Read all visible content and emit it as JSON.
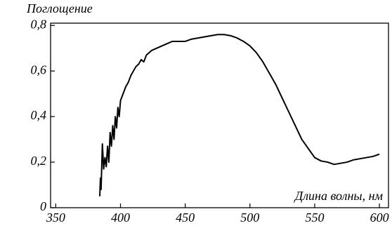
{
  "chart_data": {
    "type": "line",
    "ylabel": "Поглощение",
    "xlabel": "Длина волны, нм",
    "x": [
      384,
      384.5,
      385,
      386,
      387,
      388,
      389,
      390,
      391,
      392,
      393,
      394,
      395,
      396,
      397,
      398,
      399,
      400,
      402,
      404,
      406,
      408,
      410,
      412,
      414,
      416,
      418,
      420,
      424,
      428,
      432,
      436,
      440,
      445,
      450,
      455,
      460,
      465,
      470,
      475,
      480,
      485,
      490,
      495,
      500,
      505,
      510,
      515,
      520,
      525,
      530,
      535,
      540,
      545,
      550,
      555,
      560,
      565,
      570,
      575,
      580,
      585,
      590,
      595,
      600
    ],
    "series": [
      {
        "color": "#000000",
        "values": [
          0.05,
          0.13,
          0.08,
          0.28,
          0.17,
          0.22,
          0.18,
          0.27,
          0.2,
          0.33,
          0.27,
          0.36,
          0.3,
          0.4,
          0.35,
          0.44,
          0.4,
          0.47,
          0.5,
          0.53,
          0.55,
          0.58,
          0.6,
          0.62,
          0.63,
          0.65,
          0.64,
          0.67,
          0.69,
          0.7,
          0.71,
          0.72,
          0.73,
          0.73,
          0.73,
          0.74,
          0.745,
          0.75,
          0.755,
          0.76,
          0.76,
          0.755,
          0.745,
          0.73,
          0.71,
          0.68,
          0.64,
          0.59,
          0.54,
          0.48,
          0.42,
          0.36,
          0.3,
          0.26,
          0.22,
          0.205,
          0.2,
          0.19,
          0.195,
          0.2,
          0.21,
          0.215,
          0.22,
          0.225,
          0.235
        ]
      }
    ],
    "xlim": [
      346,
      607
    ],
    "ylim": [
      0,
      0.81
    ],
    "xticks": [
      350,
      400,
      450,
      500,
      550,
      600
    ],
    "yticks": [
      0,
      {
        "value": 0.2,
        "label": "0,2"
      },
      {
        "value": 0.4,
        "label": "0,4"
      },
      {
        "value": 0.6,
        "label": "0,6"
      },
      {
        "value": 0.8,
        "label": "0,8"
      }
    ]
  }
}
